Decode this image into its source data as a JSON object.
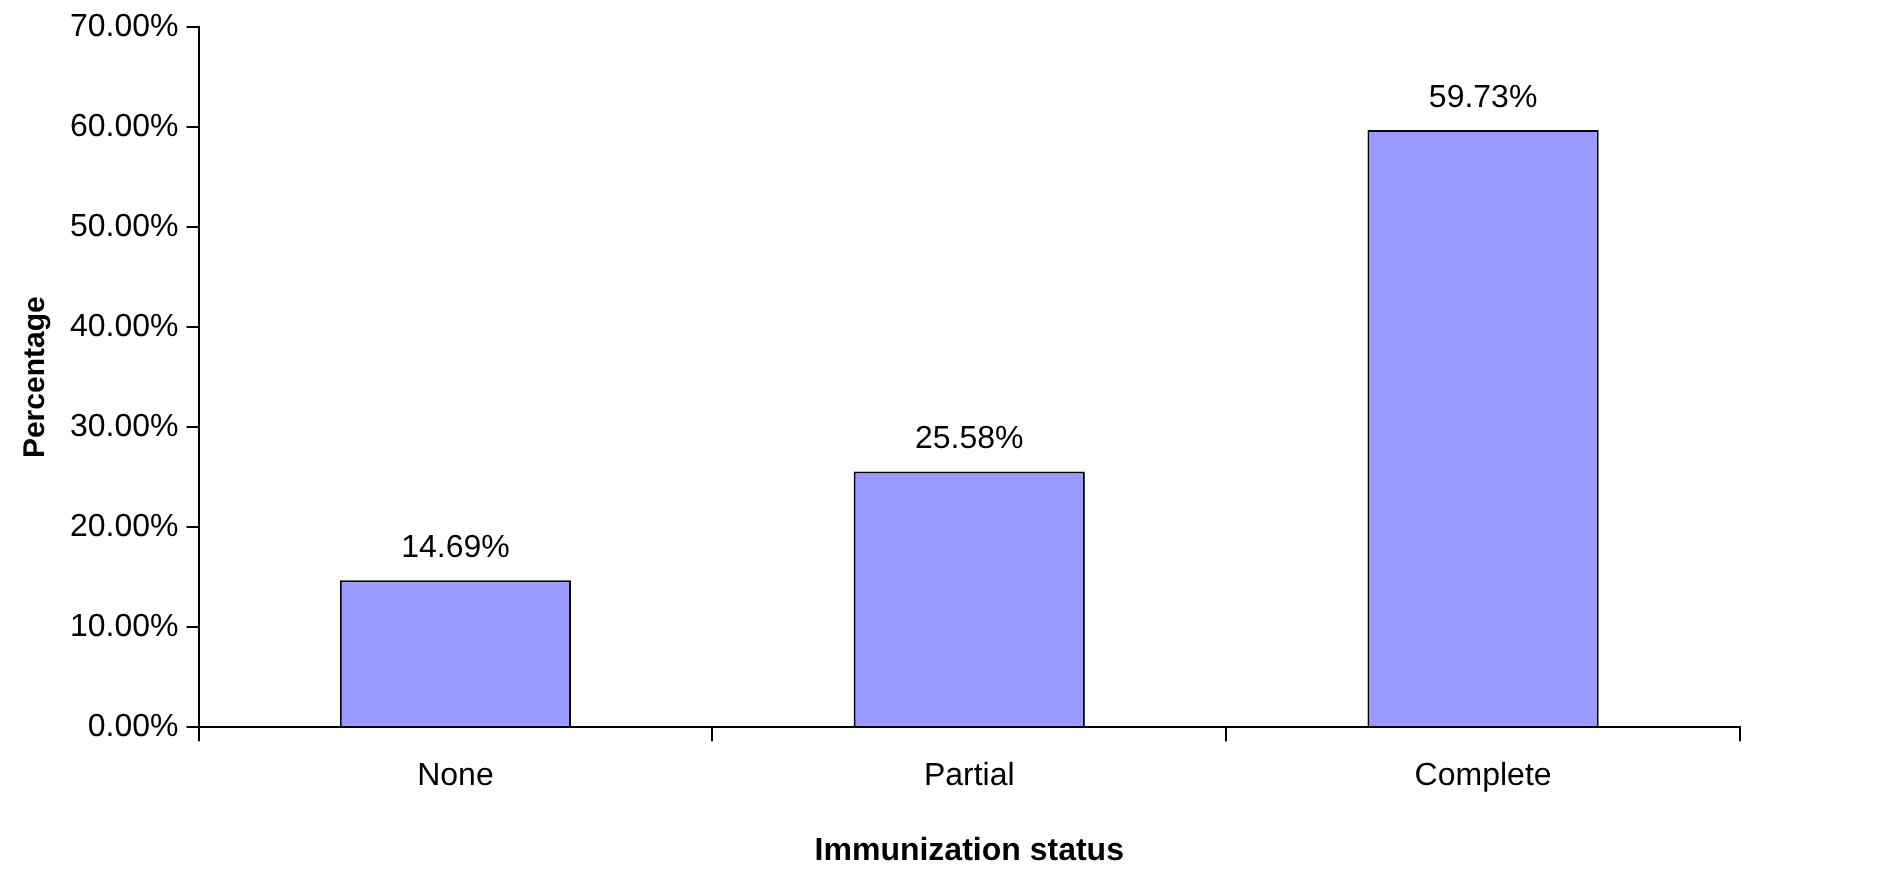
{
  "chart_data": {
    "type": "bar",
    "xlabel": "Immunization status",
    "ylabel": "Percentage",
    "categories": [
      "None",
      "Partial",
      "Complete"
    ],
    "values": [
      14.69,
      25.58,
      59.73
    ],
    "color": "#9999ff",
    "value_labels": [
      "14.69%",
      "25.58%",
      "59.73%"
    ],
    "ylim": [
      0,
      70
    ],
    "yticks": [
      {
        "value": 0,
        "label": "0.00%"
      },
      {
        "value": 10,
        "label": "10.00%"
      },
      {
        "value": 20,
        "label": "20.00%"
      },
      {
        "value": 30,
        "label": "30.00%"
      },
      {
        "value": 40,
        "label": "40.00%"
      },
      {
        "value": 50,
        "label": "50.00%"
      },
      {
        "value": 60,
        "label": "60.00%"
      },
      {
        "value": 70,
        "label": "70.00%"
      }
    ],
    "legend": false
  }
}
